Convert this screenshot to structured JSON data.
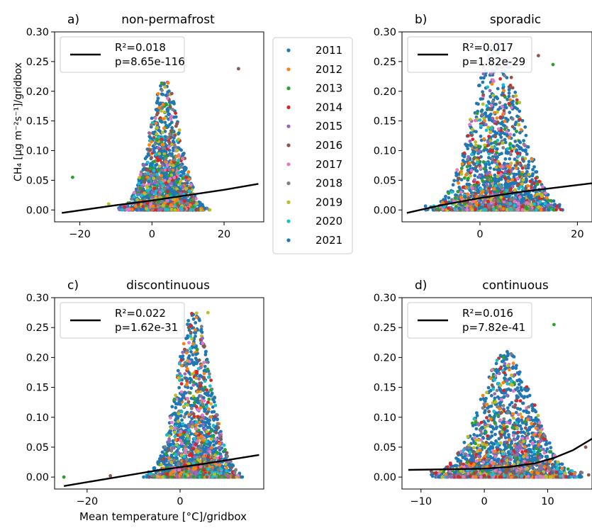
{
  "figure": {
    "ylabel": "CH₄ [µg m⁻²s⁻¹]/gridbox",
    "xlabel": "Mean temperature [°C]/gridbox"
  },
  "legend": {
    "entries": [
      {
        "label": "2011",
        "color": "#1f77b4"
      },
      {
        "label": "2012",
        "color": "#ff7f0e"
      },
      {
        "label": "2013",
        "color": "#2ca02c"
      },
      {
        "label": "2014",
        "color": "#d62728"
      },
      {
        "label": "2015",
        "color": "#9467bd"
      },
      {
        "label": "2016",
        "color": "#8c564b"
      },
      {
        "label": "2017",
        "color": "#e377c2"
      },
      {
        "label": "2018",
        "color": "#7f7f7f"
      },
      {
        "label": "2019",
        "color": "#bcbd22"
      },
      {
        "label": "2020",
        "color": "#17becf"
      },
      {
        "label": "2021",
        "color": "#1f77b4"
      }
    ]
  },
  "chart_data": [
    {
      "type": "scatter",
      "panel": "a)",
      "title": "non-permafrost",
      "xlim": [
        -27,
        31
      ],
      "ylim": [
        -0.02,
        0.3
      ],
      "xticks": [
        -20,
        0,
        20
      ],
      "yticks": [
        0.0,
        0.05,
        0.1,
        0.15,
        0.2,
        0.25,
        0.3
      ],
      "show_ytick_labels": true,
      "show_xtick_labels": true,
      "stats": {
        "r2": "R²=0.018",
        "p": "p=8.65e-116"
      },
      "fit": {
        "x": [
          -25,
          -10,
          0,
          10,
          20,
          29.5
        ],
        "y": [
          -0.005,
          0.008,
          0.016,
          0.025,
          0.034,
          0.044
        ]
      },
      "cloud": {
        "center": 3.5,
        "spread": 3.5,
        "max": 0.22
      },
      "outliers": [
        {
          "x": -22,
          "y": 0.055
        },
        {
          "x": 24,
          "y": 0.238
        },
        {
          "x": -12,
          "y": 0.01
        }
      ]
    },
    {
      "type": "scatter",
      "panel": "b)",
      "title": "sporadic",
      "xlim": [
        -16,
        23
      ],
      "ylim": [
        -0.02,
        0.3
      ],
      "xticks": [
        0,
        20
      ],
      "yticks": [
        0.0,
        0.05,
        0.1,
        0.15,
        0.2,
        0.25,
        0.3
      ],
      "show_ytick_labels": true,
      "show_xtick_labels": true,
      "stats": {
        "r2": "R²=0.017",
        "p": "p=1.82e-29"
      },
      "fit": {
        "x": [
          -15,
          -8,
          0,
          8,
          16,
          23
        ],
        "y": [
          -0.005,
          0.008,
          0.02,
          0.03,
          0.038,
          0.045
        ]
      },
      "cloud": {
        "center": 3.5,
        "spread": 4,
        "max": 0.29
      },
      "outliers": [
        {
          "x": 15,
          "y": 0.245
        },
        {
          "x": 12,
          "y": 0.26
        }
      ]
    },
    {
      "type": "scatter",
      "panel": "c)",
      "title": "discontinuous",
      "xlim": [
        -27,
        18
      ],
      "ylim": [
        -0.02,
        0.3
      ],
      "xticks": [
        -20,
        0
      ],
      "yticks": [
        0.0,
        0.05,
        0.1,
        0.15,
        0.2,
        0.25,
        0.3
      ],
      "show_ytick_labels": true,
      "show_xtick_labels": true,
      "stats": {
        "r2": "R²=0.022",
        "p": "p=1.62e-31"
      },
      "fit": {
        "x": [
          -25,
          -15,
          -5,
          5,
          17
        ],
        "y": [
          -0.015,
          -0.002,
          0.011,
          0.022,
          0.037
        ]
      },
      "cloud": {
        "center": 3,
        "spread": 3,
        "max": 0.28
      },
      "outliers": [
        {
          "x": -25,
          "y": 0.0
        },
        {
          "x": -15,
          "y": 0.002
        },
        {
          "x": 6,
          "y": 0.275
        }
      ]
    },
    {
      "type": "scatter",
      "panel": "d)",
      "title": "continuous",
      "xlim": [
        -13,
        17
      ],
      "ylim": [
        -0.02,
        0.3
      ],
      "xticks": [
        -10,
        0,
        10
      ],
      "yticks": [
        0.0,
        0.05,
        0.1,
        0.15,
        0.2,
        0.25,
        0.3
      ],
      "show_ytick_labels": true,
      "show_xtick_labels": true,
      "stats": {
        "r2": "R²=0.016",
        "p": "p=7.82e-41"
      },
      "fit": {
        "x": [
          -12,
          -6,
          0,
          4,
          8,
          11,
          14,
          17
        ],
        "y": [
          0.012,
          0.013,
          0.014,
          0.017,
          0.023,
          0.032,
          0.045,
          0.064
        ]
      },
      "cloud": {
        "center": 3.5,
        "spread": 3.5,
        "max": 0.21
      },
      "outliers": [
        {
          "x": 11,
          "y": 0.255
        },
        {
          "x": 16,
          "y": 0.05
        }
      ]
    }
  ]
}
